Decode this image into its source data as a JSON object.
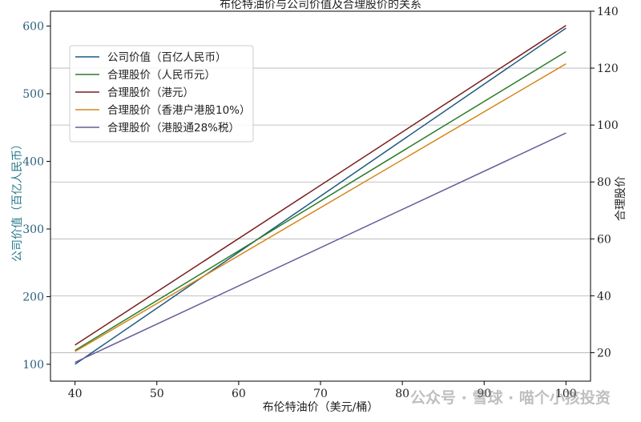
{
  "chart_data": {
    "type": "line",
    "title": "布伦特油价与公司价值及合理股价的关系",
    "xlabel": "布伦特油价（美元/桶）",
    "ylabel_left": "公司价值（百亿人民币）",
    "ylabel_right": "合理股价",
    "xlim": [
      37,
      103
    ],
    "ylim_left": [
      75,
      622
    ],
    "ylim_right": [
      10,
      140
    ],
    "x_ticks": [
      40,
      50,
      60,
      70,
      80,
      90,
      100
    ],
    "y_left_ticks": [
      100,
      200,
      300,
      400,
      500,
      600
    ],
    "y_right_ticks": [
      20,
      40,
      60,
      80,
      100,
      120,
      140
    ],
    "grid": "right axis horizontal",
    "legend_position": "upper-left",
    "x": [
      40,
      100
    ],
    "series": [
      {
        "name": "公司价值（百亿人民币）",
        "axis": "left",
        "color": "#1f5a80",
        "values": [
          100,
          597
        ]
      },
      {
        "name": "合理股价（人民币元）",
        "axis": "right",
        "color": "#2a7d2a",
        "values": [
          20.8,
          125.8
        ]
      },
      {
        "name": "合理股价（港元）",
        "axis": "right",
        "color": "#7a1e1e",
        "values": [
          22.7,
          135.0
        ]
      },
      {
        "name": "合理股价（香港户港股10%）",
        "axis": "right",
        "color": "#d4871b",
        "values": [
          20.4,
          121.5
        ]
      },
      {
        "name": "合理股价（港股通28%税）",
        "axis": "right",
        "color": "#6a5a9a",
        "values": [
          16.6,
          97.2
        ]
      }
    ]
  },
  "watermark": "公众号 · 雪球 · 喵个小孩投资"
}
